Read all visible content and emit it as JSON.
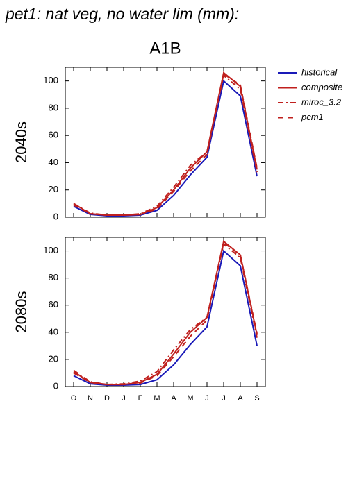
{
  "title": "pet1: nat veg, no water lim (mm):",
  "subtitle": "A1B",
  "chart_data": [
    {
      "type": "line",
      "ylabel": "2040s",
      "categories": [
        null,
        null,
        null,
        null,
        null,
        null,
        null,
        null,
        null,
        null,
        null,
        null
      ],
      "ylim": [
        0,
        110
      ],
      "yticks": [
        0,
        20,
        40,
        60,
        80,
        100
      ],
      "series": [
        {
          "name": "historical",
          "color": "#1a1ab8",
          "dash": "none",
          "values": [
            8,
            2,
            1,
            1,
            1.5,
            5,
            16,
            31,
            44,
            100,
            89,
            30
          ]
        },
        {
          "name": "composite",
          "color": "#c0201e",
          "dash": "none",
          "values": [
            10,
            2.5,
            1.5,
            1.5,
            2,
            7,
            20,
            36,
            48,
            106,
            96,
            35
          ]
        },
        {
          "name": "miroc_3.2",
          "color": "#c0201e",
          "dash": "8,4,2,4",
          "values": [
            10,
            3,
            1.5,
            1.5,
            2.5,
            8,
            22,
            38,
            48,
            104,
            94,
            33
          ]
        },
        {
          "name": "pcm1",
          "color": "#c0201e",
          "dash": "8,6",
          "values": [
            9,
            2.5,
            1.5,
            1.5,
            2,
            6,
            19,
            34,
            46,
            105,
            97,
            36
          ]
        }
      ]
    },
    {
      "type": "line",
      "ylabel": "2080s",
      "categories": [
        "O",
        "N",
        "D",
        "J",
        "F",
        "M",
        "A",
        "M",
        "J",
        "J",
        "A",
        "S"
      ],
      "ylim": [
        0,
        110
      ],
      "yticks": [
        0,
        20,
        40,
        60,
        80,
        100
      ],
      "series": [
        {
          "color": "#1a1ab8",
          "dash": "none",
          "values": [
            8,
            2,
            1,
            1,
            1.5,
            5,
            16,
            31,
            44,
            100,
            89,
            30
          ]
        },
        {
          "color": "#c0201e",
          "dash": "none",
          "values": [
            11,
            3,
            1.5,
            1.5,
            3,
            9,
            24,
            40,
            51,
            107,
            97,
            38
          ]
        },
        {
          "color": "#c0201e",
          "dash": "8,4,2,4",
          "values": [
            12,
            3.5,
            1.5,
            2,
            4,
            11,
            27,
            42,
            51,
            105,
            95,
            36
          ]
        },
        {
          "color": "#c0201e",
          "dash": "8,6",
          "values": [
            10,
            3,
            1.5,
            1.5,
            2.5,
            8,
            22,
            37,
            49,
            106,
            97,
            39
          ]
        }
      ]
    }
  ]
}
